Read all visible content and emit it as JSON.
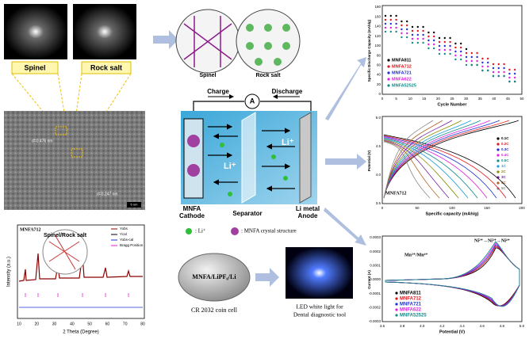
{
  "tem": {
    "fft_labels": [
      "Spinel",
      "Rock salt"
    ],
    "d_spacings": [
      "d=0.476 nm",
      "d=0.247 nm"
    ],
    "scale_bar": "5 nm"
  },
  "xrd": {
    "sample": "MNFA712",
    "inset": "Spinel/Rock salt",
    "legend": [
      "Yobs",
      "Ycal",
      "Yobs-cal",
      "Bragg Position"
    ],
    "x_label": "2 Theta (Degree)",
    "y_label": "Intensity (a.u.)",
    "xticks": [
      "10",
      "20",
      "30",
      "40",
      "50",
      "60",
      "70",
      "80"
    ]
  },
  "crystal": {
    "labels": [
      "Spinel",
      "Rock salt"
    ]
  },
  "battery": {
    "charge": "Charge",
    "discharge": "Discharge",
    "ammeter": "A",
    "ion": "Li⁺",
    "cathode": [
      "MNFA",
      "Cathode"
    ],
    "separator": "Separator",
    "anode": [
      "Li metal",
      "Anode"
    ],
    "legend": [
      ": Li⁺",
      ": MNFA crystal structure"
    ]
  },
  "device": {
    "coin_text": "MNFA/LiPF₆/Li",
    "coin_caption": "CR 2032 coin cell",
    "led_caption": [
      "LED white light for",
      "Dental diagnostic tool"
    ]
  },
  "rate": {
    "y_label": "Specific Discharge Capacity (mAh/g)",
    "x_label": "Cycle Number",
    "yticks": [
      "0",
      "20",
      "40",
      "60",
      "80",
      "100",
      "120",
      "140",
      "160",
      "180"
    ],
    "xticks": [
      "0",
      "5",
      "10",
      "15",
      "20",
      "25",
      "30",
      "35",
      "40",
      "45",
      "50"
    ],
    "legend": [
      {
        "name": "MNFA811",
        "color": "#000000"
      },
      {
        "name": "MNFA712",
        "color": "#e8141b"
      },
      {
        "name": "MNFA721",
        "color": "#1f2fd6"
      },
      {
        "name": "MNFA622",
        "color": "#e01fe0"
      },
      {
        "name": "MNFA52525",
        "color": "#138a8a"
      }
    ]
  },
  "gcd": {
    "sample": "MNFA712",
    "y_label": "Potential (V)",
    "x_label": "Specific capacity (mAh/g)",
    "yticks": [
      "3.5",
      "4.0",
      "4.5",
      "5.0"
    ],
    "xticks": [
      "0",
      "50",
      "100",
      "150",
      "200"
    ],
    "legend": [
      {
        "name": "0.1C",
        "color": "#000000"
      },
      {
        "name": "0.2C",
        "color": "#e8141b"
      },
      {
        "name": "0.3C",
        "color": "#1f2fd6"
      },
      {
        "name": "0.4C",
        "color": "#e01fe0"
      },
      {
        "name": "0.5C",
        "color": "#138a8a"
      },
      {
        "name": "1C",
        "color": "#1aa0e0"
      },
      {
        "name": "2C",
        "color": "#8a8a00"
      },
      {
        "name": "3C",
        "color": "#7a1fa0"
      },
      {
        "name": "4C",
        "color": "#b06020"
      },
      {
        "name": "5C",
        "color": "#888888"
      }
    ]
  },
  "cv": {
    "y_label": "Current (A)",
    "x_label": "Potential (V)",
    "yticks": [
      "0.0003",
      "0.0002",
      "0.0001",
      "0.0000",
      "-0.0001",
      "-0.0002",
      "-0.0003"
    ],
    "xticks": [
      "3.6",
      "3.8",
      "4.0",
      "4.2",
      "4.4",
      "4.6",
      "4.8",
      "5.0"
    ],
    "annotations": [
      "Ni²⁺→Ni³⁺→Ni⁴⁺",
      "Mn³⁺/Mn⁴⁺"
    ],
    "legend": [
      {
        "name": "MNFA811",
        "color": "#000000"
      },
      {
        "name": "MNFA712",
        "color": "#e8141b"
      },
      {
        "name": "MNFA721",
        "color": "#1f2fd6"
      },
      {
        "name": "MNFA622",
        "color": "#e01fe0"
      },
      {
        "name": "MNFA52525",
        "color": "#138a8a"
      }
    ]
  }
}
